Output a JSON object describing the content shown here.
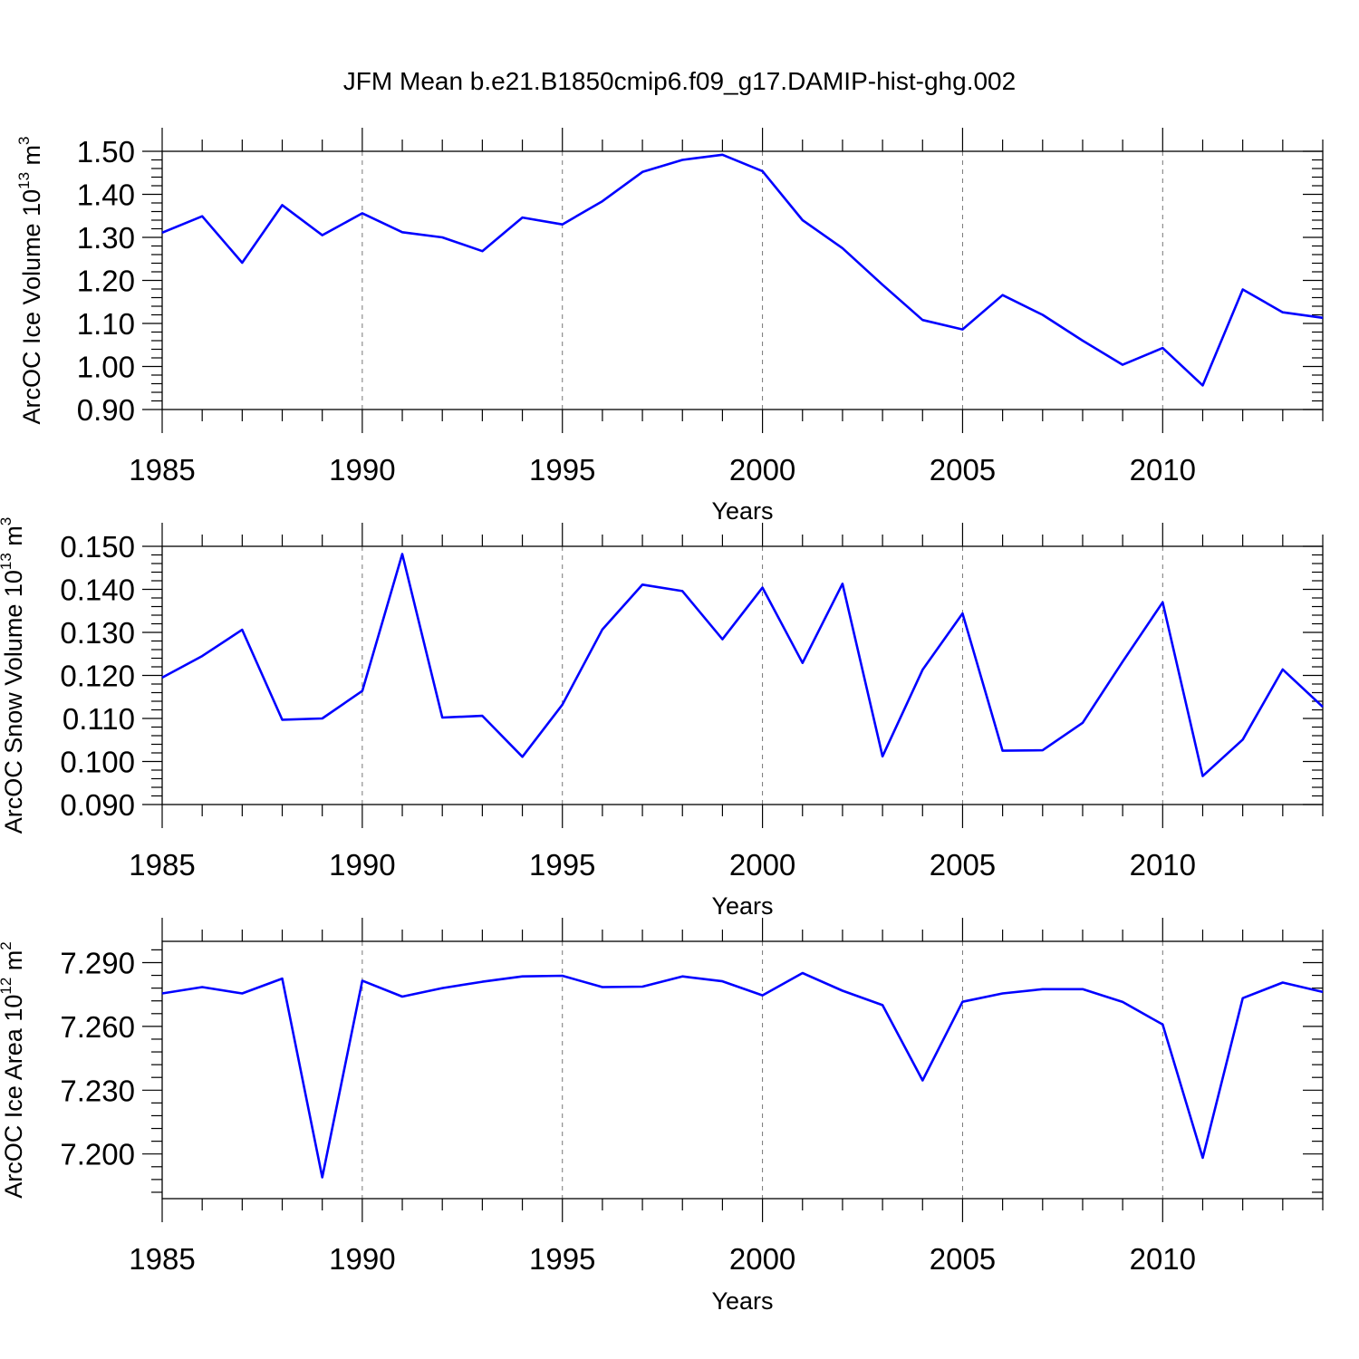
{
  "figure": {
    "title": "JFM Mean b.e21.B1850cmip6.f09_g17.DAMIP-hist-ghg.002",
    "line_color": "#0000ff"
  },
  "chart_data": [
    {
      "type": "line",
      "title": "JFM Mean b.e21.B1850cmip6.f09_g17.DAMIP-hist-ghg.002",
      "xlabel": "Years",
      "ylabel": {
        "main": "ArcOC Ice Volume 10",
        "exponent": "13",
        "unit": " m",
        "unit_exponent": "3"
      },
      "xlim": [
        1985,
        2014
      ],
      "ylim": [
        0.9,
        1.5
      ],
      "x_ticks": [
        1985,
        1990,
        1995,
        2000,
        2005,
        2010
      ],
      "x_tick_labels": [
        "1985",
        "1990",
        "1995",
        "2000",
        "2005",
        "2010"
      ],
      "y_ticks": [
        0.9,
        1.0,
        1.1,
        1.2,
        1.3,
        1.4,
        1.5
      ],
      "y_tick_labels": [
        "0.90",
        "1.00",
        "1.10",
        "1.20",
        "1.30",
        "1.40",
        "1.50"
      ],
      "grid": "vertical dashed at major x ticks",
      "x": [
        1985,
        1986,
        1987,
        1988,
        1989,
        1990,
        1991,
        1992,
        1993,
        1994,
        1995,
        1996,
        1997,
        1998,
        1999,
        2000,
        2001,
        2002,
        2003,
        2004,
        2005,
        2006,
        2007,
        2008,
        2009,
        2010,
        2011,
        2012,
        2013,
        2014
      ],
      "series": [
        {
          "name": "ArcOC Ice Volume",
          "values": [
            1.311,
            1.349,
            1.241,
            1.375,
            1.305,
            1.356,
            1.312,
            1.3,
            1.268,
            1.346,
            1.33,
            1.384,
            1.452,
            1.48,
            1.492,
            1.454,
            1.34,
            1.275,
            1.19,
            1.108,
            1.086,
            1.166,
            1.12,
            1.06,
            1.004,
            1.043,
            0.956,
            1.179,
            1.126,
            1.113
          ]
        }
      ]
    },
    {
      "type": "line",
      "xlabel": "Years",
      "ylabel": {
        "main": "ArcOC Snow Volume 10",
        "exponent": "13",
        "unit": " m",
        "unit_exponent": "3"
      },
      "xlim": [
        1985,
        2014
      ],
      "ylim": [
        0.09,
        0.15
      ],
      "x_ticks": [
        1985,
        1990,
        1995,
        2000,
        2005,
        2010
      ],
      "x_tick_labels": [
        "1985",
        "1990",
        "1995",
        "2000",
        "2005",
        "2010"
      ],
      "y_ticks": [
        0.09,
        0.1,
        0.11,
        0.12,
        0.13,
        0.14,
        0.15
      ],
      "y_tick_labels": [
        "0.090",
        "0.100",
        "0.110",
        "0.120",
        "0.130",
        "0.140",
        "0.150"
      ],
      "grid": "vertical dashed at major x ticks",
      "x": [
        1985,
        1986,
        1987,
        1988,
        1989,
        1990,
        1991,
        1992,
        1993,
        1994,
        1995,
        1996,
        1997,
        1998,
        1999,
        2000,
        2001,
        2002,
        2003,
        2004,
        2005,
        2006,
        2007,
        2008,
        2009,
        2010,
        2011,
        2012,
        2013,
        2014
      ],
      "series": [
        {
          "name": "ArcOC Snow Volume",
          "values": [
            0.1195,
            0.1245,
            0.1306,
            0.1097,
            0.11,
            0.1164,
            0.1482,
            0.1102,
            0.1106,
            0.1011,
            0.1132,
            0.1307,
            0.1411,
            0.1396,
            0.1284,
            0.1404,
            0.1229,
            0.1413,
            0.1012,
            0.1213,
            0.1344,
            0.1025,
            0.1026,
            0.109,
            0.1232,
            0.137,
            0.0966,
            0.1051,
            0.1214,
            0.1127
          ]
        }
      ]
    },
    {
      "type": "line",
      "xlabel": "Years",
      "ylabel": {
        "main": "ArcOC Ice Area 10",
        "exponent": "12",
        "unit": " m",
        "unit_exponent": "2"
      },
      "xlim": [
        1985,
        2014
      ],
      "ylim": [
        7.179,
        7.3
      ],
      "x_ticks": [
        1985,
        1990,
        1995,
        2000,
        2005,
        2010
      ],
      "x_tick_labels": [
        "1985",
        "1990",
        "1995",
        "2000",
        "2005",
        "2010"
      ],
      "y_ticks": [
        7.2,
        7.23,
        7.26,
        7.29
      ],
      "y_tick_labels": [
        "7.200",
        "7.230",
        "7.260",
        "7.290"
      ],
      "grid": "vertical dashed at major x ticks",
      "x": [
        1985,
        1986,
        1987,
        1988,
        1989,
        1990,
        1991,
        1992,
        1993,
        1994,
        1995,
        1996,
        1997,
        1998,
        1999,
        2000,
        2001,
        2002,
        2003,
        2004,
        2005,
        2006,
        2007,
        2008,
        2009,
        2010,
        2011,
        2012,
        2013,
        2014
      ],
      "series": [
        {
          "name": "ArcOC Ice Area",
          "values": [
            7.2755,
            7.2785,
            7.2755,
            7.2825,
            7.189,
            7.2815,
            7.274,
            7.278,
            7.281,
            7.2835,
            7.2838,
            7.2785,
            7.2787,
            7.2835,
            7.2812,
            7.2746,
            7.2851,
            7.2768,
            7.27,
            7.2346,
            7.2716,
            7.2755,
            7.2775,
            7.2775,
            7.2715,
            7.2609,
            7.1982,
            7.2733,
            7.2806,
            7.2762
          ]
        }
      ]
    }
  ]
}
